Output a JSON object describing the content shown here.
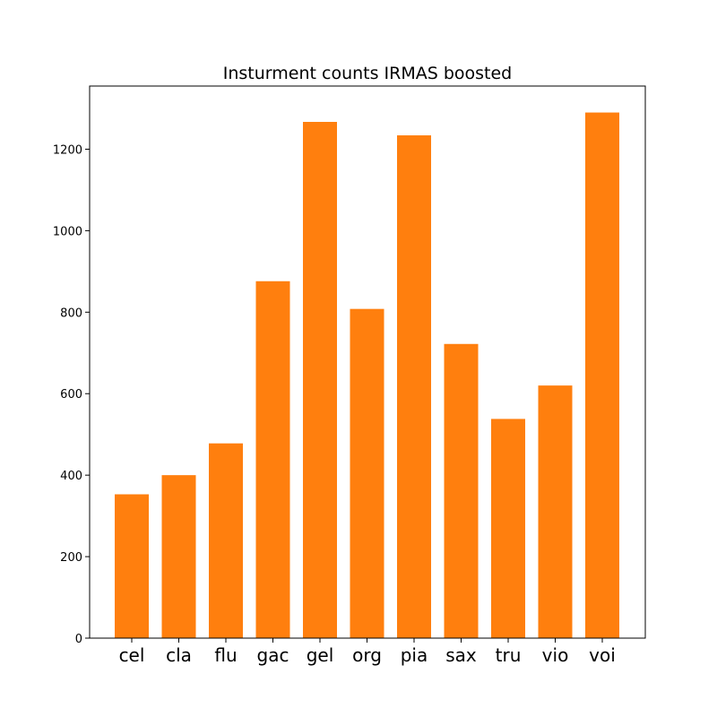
{
  "chart_data": {
    "type": "bar",
    "title": "Insturment counts IRMAS boosted",
    "xlabel": "",
    "ylabel": "",
    "categories": [
      "cel",
      "cla",
      "flu",
      "gac",
      "gel",
      "org",
      "pia",
      "sax",
      "tru",
      "vio",
      "voi"
    ],
    "values": [
      353,
      400,
      478,
      876,
      1267,
      808,
      1234,
      722,
      538,
      620,
      1290
    ],
    "ylim": [
      0,
      1355
    ],
    "yticks": [
      0,
      200,
      400,
      600,
      800,
      1000,
      1200
    ],
    "bar_color": "#ff7f0e",
    "grid": false
  }
}
